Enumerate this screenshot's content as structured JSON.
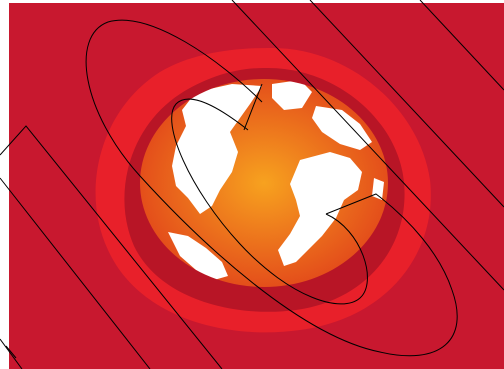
{
  "image": {
    "subject": "globe",
    "colors": {
      "background": "#c8182f",
      "outer_glow": "#e8202a",
      "inner_ring": "#b81526",
      "globe_center": "#f7a21f",
      "globe_edge": "#e2461a",
      "land": "#ffffff",
      "lines": "#000000"
    }
  }
}
